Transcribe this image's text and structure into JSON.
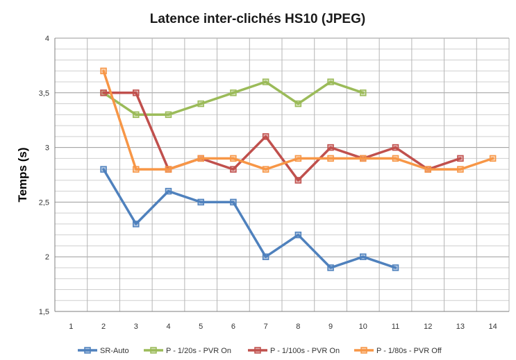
{
  "chart_data": {
    "type": "line",
    "title": "Latence inter-clichés HS10 (JPEG)",
    "xlabel": "",
    "ylabel": "Temps  (s)",
    "x": [
      1,
      2,
      3,
      4,
      5,
      6,
      7,
      8,
      9,
      10,
      11,
      12,
      13,
      14
    ],
    "x_tick_labels": [
      "1",
      "2",
      "3",
      "4",
      "5",
      "6",
      "7",
      "8",
      "9",
      "10",
      "11",
      "12",
      "13",
      "14"
    ],
    "ylim": [
      1.5,
      4
    ],
    "y_ticks": [
      1.5,
      2,
      2.5,
      3,
      3.5,
      4
    ],
    "y_tick_labels": [
      "1,5",
      "2",
      "2,5",
      "3",
      "3,5",
      "4"
    ],
    "grid": true,
    "legend_position": "bottom",
    "series": [
      {
        "name": "SR-Auto",
        "color": "#4f81bd",
        "points": [
          [
            2,
            2.8
          ],
          [
            3,
            2.3
          ],
          [
            4,
            2.6
          ],
          [
            5,
            2.5
          ],
          [
            6,
            2.5
          ],
          [
            7,
            2.0
          ],
          [
            8,
            2.2
          ],
          [
            9,
            1.9
          ],
          [
            10,
            2.0
          ],
          [
            11,
            1.9
          ]
        ]
      },
      {
        "name": "P - 1/20s - PVR On",
        "color": "#9bbb59",
        "points": [
          [
            2,
            3.5
          ],
          [
            3,
            3.3
          ],
          [
            4,
            3.3
          ],
          [
            5,
            3.4
          ],
          [
            6,
            3.5
          ],
          [
            7,
            3.6
          ],
          [
            8,
            3.4
          ],
          [
            9,
            3.6
          ],
          [
            10,
            3.5
          ]
        ]
      },
      {
        "name": "P - 1/100s - PVR On",
        "color": "#c0504d",
        "points": [
          [
            2,
            3.5
          ],
          [
            3,
            3.5
          ],
          [
            4,
            2.8
          ],
          [
            5,
            2.9
          ],
          [
            6,
            2.8
          ],
          [
            7,
            3.1
          ],
          [
            8,
            2.7
          ],
          [
            9,
            3.0
          ],
          [
            10,
            2.9
          ],
          [
            11,
            3.0
          ],
          [
            12,
            2.8
          ],
          [
            13,
            2.9
          ]
        ]
      },
      {
        "name": "P - 1/80s - PVR Off",
        "color": "#f79646",
        "points": [
          [
            2,
            3.7
          ],
          [
            3,
            2.8
          ],
          [
            4,
            2.8
          ],
          [
            5,
            2.9
          ],
          [
            6,
            2.9
          ],
          [
            7,
            2.8
          ],
          [
            8,
            2.9
          ],
          [
            9,
            2.9
          ],
          [
            10,
            2.9
          ],
          [
            11,
            2.9
          ],
          [
            12,
            2.8
          ],
          [
            13,
            2.8
          ],
          [
            14,
            2.9
          ]
        ]
      }
    ]
  }
}
